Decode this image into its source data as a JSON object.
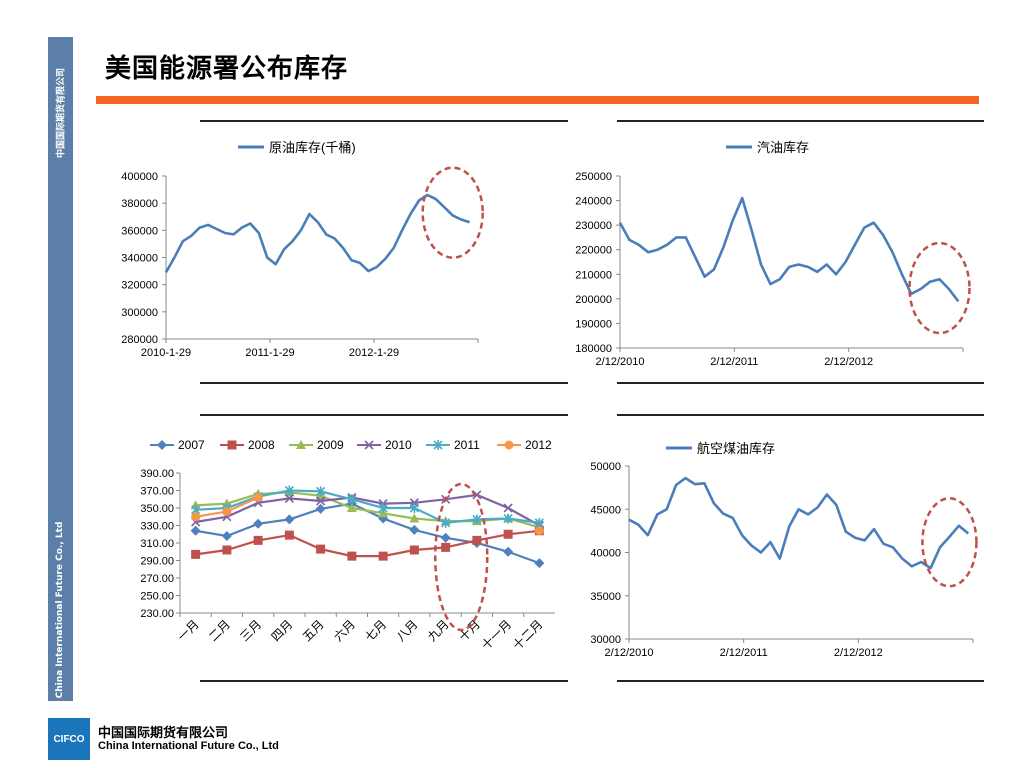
{
  "page": {
    "title": "美国能源署公布库存",
    "sidebar_text_top": "中国国际期货有限公司",
    "sidebar_text_bottom": "China International Future Co., Ltd",
    "company_logo": "CIFCO",
    "company_name_cn": "中国国际期货有限公司",
    "company_name_en": "China International Future Co., Ltd",
    "accent_color": "#f26522",
    "sidebar_color": "#5b7fa8"
  },
  "chart_data": [
    {
      "id": "crude",
      "type": "line",
      "title": "",
      "legend": [
        "原油库存(千桶)"
      ],
      "legend_position": "top",
      "x_labels": [
        "2010-1-29",
        "2011-1-29",
        "2012-1-29"
      ],
      "x_range": [
        "2010-01-29",
        "2012-11-30"
      ],
      "ylim": [
        280000,
        400000
      ],
      "yticks": [
        280000,
        300000,
        320000,
        340000,
        360000,
        380000,
        400000
      ],
      "color": "#4a7ebb",
      "series": [
        {
          "name": "原油库存(千桶)",
          "points": [
            [
              "2010-01-29",
              329000
            ],
            [
              "2010-02-26",
              340000
            ],
            [
              "2010-03-26",
              352000
            ],
            [
              "2010-04-23",
              356000
            ],
            [
              "2010-05-21",
              362000
            ],
            [
              "2010-06-18",
              364000
            ],
            [
              "2010-07-16",
              361000
            ],
            [
              "2010-08-13",
              358000
            ],
            [
              "2010-09-10",
              357000
            ],
            [
              "2010-10-08",
              362000
            ],
            [
              "2010-11-05",
              365000
            ],
            [
              "2010-12-03",
              358000
            ],
            [
              "2010-12-31",
              340000
            ],
            [
              "2011-01-28",
              335000
            ],
            [
              "2011-02-25",
              346000
            ],
            [
              "2011-03-25",
              352000
            ],
            [
              "2011-04-22",
              360000
            ],
            [
              "2011-05-20",
              372000
            ],
            [
              "2011-06-17",
              366000
            ],
            [
              "2011-07-15",
              357000
            ],
            [
              "2011-08-12",
              354000
            ],
            [
              "2011-09-09",
              347000
            ],
            [
              "2011-10-07",
              338000
            ],
            [
              "2011-11-04",
              336000
            ],
            [
              "2011-12-02",
              330000
            ],
            [
              "2011-12-30",
              333000
            ],
            [
              "2012-01-27",
              339000
            ],
            [
              "2012-02-24",
              347000
            ],
            [
              "2012-03-23",
              360000
            ],
            [
              "2012-04-20",
              372000
            ],
            [
              "2012-05-18",
              382000
            ],
            [
              "2012-06-15",
              386000
            ],
            [
              "2012-07-13",
              383000
            ],
            [
              "2012-08-10",
              377000
            ],
            [
              "2012-09-07",
              371000
            ],
            [
              "2012-10-05",
              368000
            ],
            [
              "2012-11-02",
              366000
            ]
          ]
        }
      ],
      "annotation": "dashed-circle"
    },
    {
      "id": "gasoline",
      "type": "line",
      "title": "",
      "legend": [
        "汽油库存"
      ],
      "legend_position": "top",
      "x_labels": [
        "2/12/2010",
        "2/12/2011",
        "2/12/2012"
      ],
      "x_range": [
        "2010-02-12",
        "2012-11-30"
      ],
      "ylim": [
        180000,
        250000
      ],
      "yticks": [
        180000,
        190000,
        200000,
        210000,
        220000,
        230000,
        240000,
        250000
      ],
      "color": "#4a7ebb",
      "series": [
        {
          "name": "汽油库存",
          "points": [
            [
              "2010-02-12",
              231000
            ],
            [
              "2010-03-12",
              224000
            ],
            [
              "2010-04-09",
              222000
            ],
            [
              "2010-05-07",
              219000
            ],
            [
              "2010-06-04",
              220000
            ],
            [
              "2010-07-02",
              222000
            ],
            [
              "2010-07-30",
              225000
            ],
            [
              "2010-08-27",
              225000
            ],
            [
              "2010-09-24",
              217000
            ],
            [
              "2010-10-22",
              209000
            ],
            [
              "2010-11-19",
              212000
            ],
            [
              "2010-12-17",
              221000
            ],
            [
              "2011-01-14",
              232000
            ],
            [
              "2011-02-11",
              241000
            ],
            [
              "2011-03-11",
              228000
            ],
            [
              "2011-04-08",
              214000
            ],
            [
              "2011-05-06",
              206000
            ],
            [
              "2011-06-03",
              208000
            ],
            [
              "2011-07-01",
              213000
            ],
            [
              "2011-07-29",
              214000
            ],
            [
              "2011-08-26",
              213000
            ],
            [
              "2011-09-23",
              211000
            ],
            [
              "2011-10-21",
              214000
            ],
            [
              "2011-11-18",
              210000
            ],
            [
              "2011-12-16",
              215000
            ],
            [
              "2012-01-13",
              222000
            ],
            [
              "2012-02-10",
              229000
            ],
            [
              "2012-03-09",
              231000
            ],
            [
              "2012-04-06",
              226000
            ],
            [
              "2012-05-04",
              219000
            ],
            [
              "2012-06-01",
              210000
            ],
            [
              "2012-06-29",
              202000
            ],
            [
              "2012-07-27",
              204000
            ],
            [
              "2012-08-24",
              207000
            ],
            [
              "2012-09-21",
              208000
            ],
            [
              "2012-10-19",
              204000
            ],
            [
              "2012-11-16",
              199000
            ]
          ]
        }
      ],
      "annotation": "dashed-circle"
    },
    {
      "id": "monthly",
      "type": "line",
      "title": "",
      "legend_position": "top",
      "categories": [
        "一月",
        "二月",
        "三月",
        "四月",
        "五月",
        "六月",
        "七月",
        "八月",
        "九月",
        "十月",
        "十一月",
        "十二月"
      ],
      "ylim": [
        230.0,
        390.0
      ],
      "yticks": [
        "230.00",
        "250.00",
        "270.00",
        "290.00",
        "310.00",
        "330.00",
        "350.00",
        "370.00",
        "390.00"
      ],
      "series": [
        {
          "name": "2007",
          "color": "#4f81bd",
          "marker": "diamond",
          "values": [
            324,
            318,
            332,
            337,
            349,
            355,
            338,
            325,
            316,
            310,
            300,
            287
          ]
        },
        {
          "name": "2008",
          "color": "#c0504d",
          "marker": "square",
          "values": [
            297,
            302,
            313,
            319,
            303,
            295,
            295,
            302,
            305,
            313,
            320,
            324
          ]
        },
        {
          "name": "2009",
          "color": "#9bbb59",
          "marker": "triangle",
          "values": [
            353,
            355,
            366,
            368,
            364,
            350,
            344,
            338,
            335,
            335,
            338,
            328
          ]
        },
        {
          "name": "2010",
          "color": "#8064a2",
          "marker": "x",
          "values": [
            334,
            340,
            356,
            361,
            358,
            362,
            355,
            356,
            360,
            365,
            350,
            330
          ]
        },
        {
          "name": "2011",
          "color": "#4bacc6",
          "marker": "star",
          "values": [
            348,
            350,
            363,
            370,
            369,
            360,
            350,
            350,
            333,
            337,
            338,
            333
          ]
        },
        {
          "name": "2012",
          "color": "#f79646",
          "marker": "circle",
          "values": [
            340,
            346,
            362,
            null,
            null,
            null,
            null,
            null,
            null,
            null,
            null,
            324
          ]
        }
      ],
      "annotation": "dashed-ellipse"
    },
    {
      "id": "jet",
      "type": "line",
      "title": "",
      "legend": [
        "航空煤油库存"
      ],
      "legend_position": "top",
      "x_labels": [
        "2/12/2010",
        "2/12/2011",
        "2/12/2012"
      ],
      "x_range": [
        "2010-02-12",
        "2012-11-30"
      ],
      "ylim": [
        30000,
        50000
      ],
      "yticks": [
        30000,
        35000,
        40000,
        45000,
        50000
      ],
      "color": "#4a7ebb",
      "series": [
        {
          "name": "航空煤油库存",
          "points": [
            [
              "2010-02-12",
              43800
            ],
            [
              "2010-03-12",
              43200
            ],
            [
              "2010-04-09",
              42000
            ],
            [
              "2010-05-07",
              44400
            ],
            [
              "2010-06-04",
              45000
            ],
            [
              "2010-07-02",
              47800
            ],
            [
              "2010-07-30",
              48600
            ],
            [
              "2010-08-27",
              47900
            ],
            [
              "2010-09-24",
              48000
            ],
            [
              "2010-10-22",
              45700
            ],
            [
              "2010-11-19",
              44500
            ],
            [
              "2010-12-17",
              44000
            ],
            [
              "2011-01-14",
              42000
            ],
            [
              "2011-02-11",
              40800
            ],
            [
              "2011-03-11",
              40000
            ],
            [
              "2011-04-08",
              41200
            ],
            [
              "2011-05-06",
              39300
            ],
            [
              "2011-06-03",
              43000
            ],
            [
              "2011-07-01",
              45000
            ],
            [
              "2011-07-29",
              44400
            ],
            [
              "2011-08-26",
              45200
            ],
            [
              "2011-09-23",
              46700
            ],
            [
              "2011-10-21",
              45500
            ],
            [
              "2011-11-18",
              42400
            ],
            [
              "2011-12-16",
              41700
            ],
            [
              "2012-01-13",
              41400
            ],
            [
              "2012-02-10",
              42700
            ],
            [
              "2012-03-09",
              41000
            ],
            [
              "2012-04-06",
              40600
            ],
            [
              "2012-05-04",
              39300
            ],
            [
              "2012-06-01",
              38400
            ],
            [
              "2012-06-29",
              38900
            ],
            [
              "2012-07-27",
              38200
            ],
            [
              "2012-08-24",
              40600
            ],
            [
              "2012-09-21",
              41800
            ],
            [
              "2012-10-19",
              43100
            ],
            [
              "2012-11-16",
              42200
            ]
          ]
        }
      ],
      "annotation": "dashed-circle"
    }
  ]
}
